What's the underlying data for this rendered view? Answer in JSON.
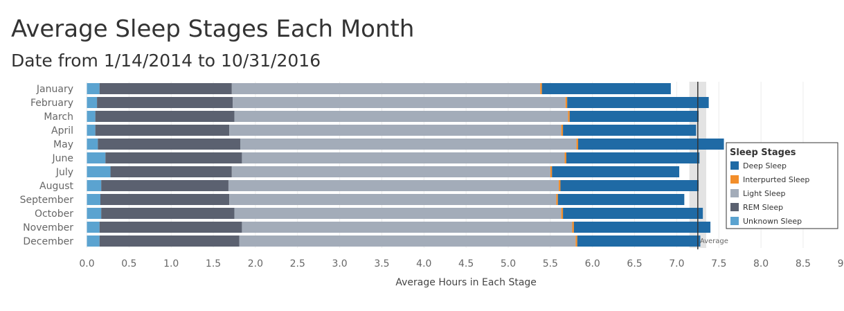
{
  "chart_data": {
    "type": "bar",
    "orientation": "horizontal",
    "stacked": true,
    "title": "Average Sleep Stages Each Month",
    "subtitle": "Date from 1/14/2014 to 10/31/2016",
    "xlabel": "Average Hours in Each Stage",
    "ylabel": "",
    "xlim": [
      -0.1,
      9.1
    ],
    "xticks": [
      "0.0",
      "0.5",
      "1.0",
      "1.5",
      "2.0",
      "2.5",
      "3.0",
      "3.5",
      "4.0",
      "4.5",
      "5.0",
      "5.5",
      "6.0",
      "6.5",
      "7.0",
      "7.5",
      "8.0",
      "8.5",
      "9.0"
    ],
    "grid": true,
    "categories": [
      "January",
      "February",
      "March",
      "April",
      "May",
      "June",
      "July",
      "August",
      "September",
      "October",
      "November",
      "December"
    ],
    "stack_order": [
      "Unknown Sleep",
      "REM Sleep",
      "Light Sleep",
      "Interpurted Sleep",
      "Deep Sleep"
    ],
    "series": [
      {
        "name": "Unknown Sleep",
        "color": "#5ba3d0",
        "values": [
          0.15,
          0.12,
          0.1,
          0.1,
          0.13,
          0.22,
          0.28,
          0.17,
          0.16,
          0.17,
          0.15,
          0.15
        ]
      },
      {
        "name": "REM Sleep",
        "color": "#5b6170",
        "values": [
          1.57,
          1.61,
          1.65,
          1.59,
          1.69,
          1.62,
          1.44,
          1.51,
          1.53,
          1.58,
          1.69,
          1.66
        ]
      },
      {
        "name": "Light Sleep",
        "color": "#a3acb9",
        "values": [
          3.66,
          3.95,
          3.96,
          3.94,
          3.99,
          3.83,
          3.78,
          3.92,
          3.88,
          3.88,
          3.92,
          3.99
        ]
      },
      {
        "name": "Interpurted Sleep",
        "color": "#f28e2b",
        "values": [
          0.02,
          0.02,
          0.02,
          0.02,
          0.02,
          0.02,
          0.02,
          0.02,
          0.02,
          0.02,
          0.02,
          0.02
        ]
      },
      {
        "name": "Deep Sleep",
        "color": "#1f6aa5",
        "values": [
          1.53,
          1.68,
          1.53,
          1.58,
          1.73,
          1.58,
          1.51,
          1.64,
          1.5,
          1.66,
          1.62,
          1.46
        ]
      }
    ],
    "reference_line": {
      "label": "Average",
      "value": 7.25,
      "band": [
        7.15,
        7.35
      ]
    },
    "legend": {
      "title": "Sleep Stages",
      "placement": "right",
      "items": [
        {
          "label": "Deep Sleep",
          "color": "#1f6aa5"
        },
        {
          "label": "Interpurted Sleep",
          "color": "#f28e2b"
        },
        {
          "label": "Light Sleep",
          "color": "#a3acb9"
        },
        {
          "label": "REM Sleep",
          "color": "#5b6170"
        },
        {
          "label": "Unknown Sleep",
          "color": "#5ba3d0"
        }
      ]
    }
  }
}
